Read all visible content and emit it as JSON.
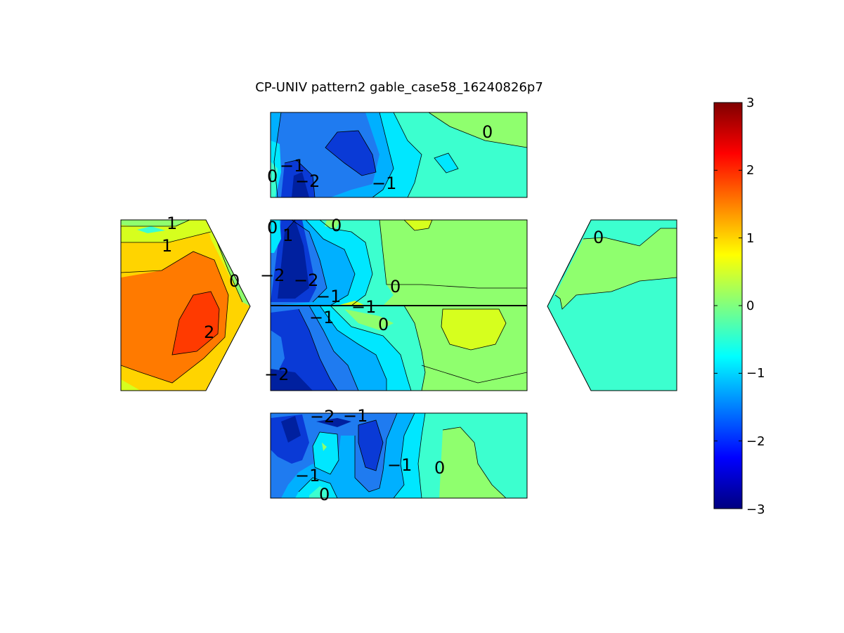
{
  "chart_data": {
    "type": "contour",
    "title": "CP-UNIV pattern2 gable_case58_16240826p7",
    "colormap": "jet",
    "colorbar": {
      "min": -3,
      "max": 3,
      "ticks": [
        "3",
        "2",
        "1",
        "0",
        "−1",
        "−2",
        "−3"
      ],
      "placement": "right"
    },
    "levels": [
      -3,
      -2.5,
      -2,
      -1.5,
      -1,
      -0.5,
      0,
      0.5,
      1,
      1.5,
      2,
      2.5,
      3
    ],
    "colors": {
      "n25": "#00209f",
      "n2": "#0a3ad6",
      "n15": "#1f7bf0",
      "n1": "#00b0ff",
      "n05": "#00e7ff",
      "z0": "#3cffcf",
      "p05": "#8fff6e",
      "p1": "#d6ff1e",
      "p15": "#ffd400",
      "p2": "#ff7a00",
      "p25": "#ff3a00"
    },
    "panels": [
      {
        "name": "left-gable",
        "contour_labels": [
          "1",
          "1",
          "0",
          "2"
        ]
      },
      {
        "name": "roof-top",
        "contour_labels": [
          "0",
          "−1",
          "0",
          "−2",
          "−1"
        ]
      },
      {
        "name": "wall-upper",
        "contour_labels": [
          "0",
          "1",
          "0",
          "−2",
          "−2",
          "−1",
          "0",
          "−1"
        ]
      },
      {
        "name": "wall-lower",
        "contour_labels": [
          "−1",
          "0",
          "−2"
        ]
      },
      {
        "name": "roof-bottom",
        "contour_labels": [
          "−2",
          "−1",
          "−1",
          "0",
          "−1",
          "0"
        ]
      },
      {
        "name": "right-gable",
        "contour_labels": [
          "0"
        ]
      }
    ]
  }
}
